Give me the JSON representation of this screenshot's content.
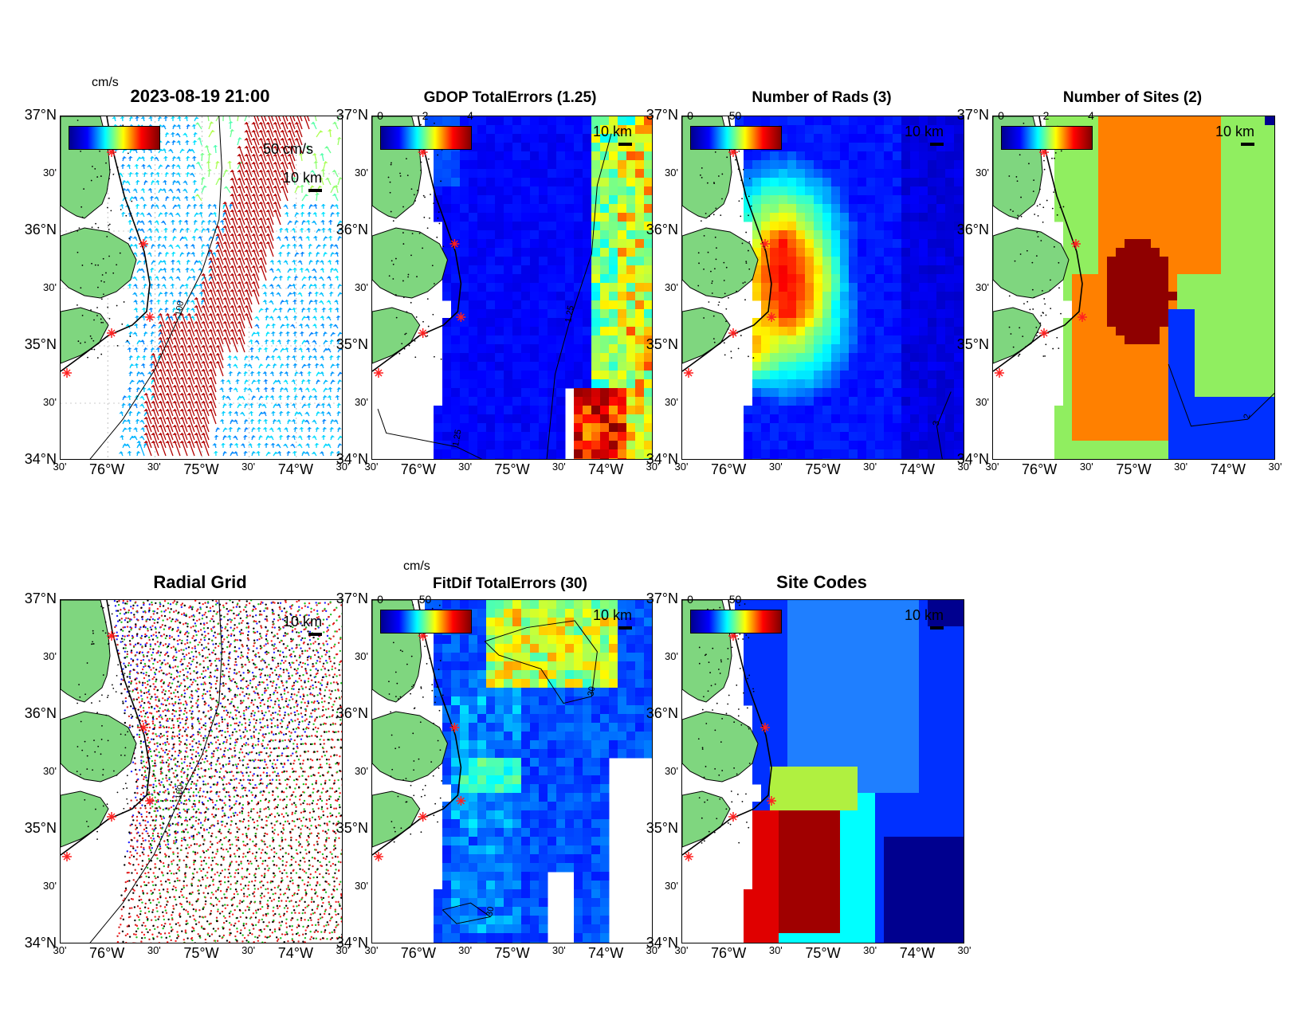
{
  "figure": {
    "timestamp": "2023-08-19 21:00",
    "lat_labels": [
      "37°N",
      "30'",
      "36°N",
      "30'",
      "35°N",
      "30'",
      "34°N"
    ],
    "lon_labels": [
      "30'",
      "76°W",
      "30'",
      "75°W",
      "30'",
      "74°W",
      "30'"
    ]
  },
  "panels": [
    {
      "id": "currents",
      "title": "2023-08-19 21:00",
      "colorbar_unit": "cm/s",
      "colorbar_ticks": [],
      "colormap": "jet",
      "scale_vector_label": "50 cm/s",
      "scale_bar_label": "10 km",
      "contour_labels": [
        "100",
        "100"
      ]
    },
    {
      "id": "gdop",
      "title": "GDOP TotalErrors (1.25)",
      "colorbar_unit": "",
      "colorbar_ticks": [
        "0",
        "2",
        "4"
      ],
      "colormap": "jet",
      "scale_bar_label": "10 km",
      "contour_labels": [
        "1.25",
        "1.25",
        "1.25",
        "1.25",
        "1.25"
      ]
    },
    {
      "id": "nrads",
      "title": "Number of Rads (3)",
      "colorbar_unit": "",
      "colorbar_ticks": [
        "0",
        "50"
      ],
      "colormap": "jet",
      "scale_bar_label": "10 km",
      "contour_labels": [
        "3"
      ]
    },
    {
      "id": "nsites",
      "title": "Number of Sites (2)",
      "colorbar_unit": "",
      "colorbar_ticks": [
        "0",
        "2",
        "4"
      ],
      "colormap": "jet",
      "scale_bar_label": "10 km",
      "contour_labels": [
        "2",
        "2",
        "2",
        "2"
      ]
    },
    {
      "id": "radial-grid",
      "title": "Radial Grid",
      "scale_bar_label": "10 km",
      "contour_labels": [
        "100",
        "100"
      ]
    },
    {
      "id": "fitdif",
      "title": "FitDif TotalErrors (30)",
      "colorbar_unit": "cm/s",
      "colorbar_ticks": [
        "0",
        "50"
      ],
      "colormap": "jet",
      "scale_bar_label": "10 km",
      "contour_labels": [
        "30",
        "30",
        "30",
        "30",
        "30",
        "30",
        "30"
      ]
    },
    {
      "id": "site-codes",
      "title": "Site Codes",
      "colorbar_unit": "",
      "colorbar_ticks": [
        "0",
        "50"
      ],
      "colormap": "jet",
      "scale_bar_label": "10 km"
    }
  ],
  "colors": {
    "land": "#7fd67f",
    "coast": "#000000",
    "site_marker": "#ff2020",
    "jet_dark_blue": "#00008f",
    "jet_blue": "#0030ff",
    "jet_cyan": "#00ffff",
    "jet_yellow": "#ffff00",
    "jet_orange": "#ff8000",
    "jet_dark_red": "#8f0000"
  }
}
